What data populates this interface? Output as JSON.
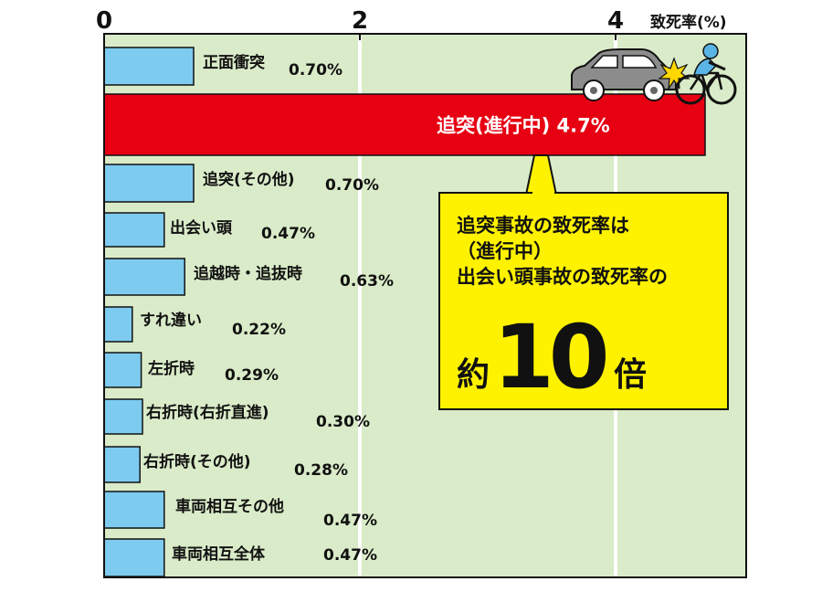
{
  "chart_data": {
    "type": "bar",
    "orientation": "horizontal",
    "x_ticks": [
      "0",
      "2",
      "4"
    ],
    "xlim": [
      0,
      4.9
    ],
    "unit_label": "致死率(%)",
    "categories": [
      "正面衝突",
      "追突(進行中)",
      "追突(その他)",
      "出会い頭",
      "追越時・追抜時",
      "すれ違い",
      "左折時",
      "右折時(右折直進)",
      "右折時(その他)",
      "車両相互その他",
      "車両相互全体"
    ],
    "values": [
      0.7,
      4.7,
      0.7,
      0.47,
      0.63,
      0.22,
      0.29,
      0.3,
      0.28,
      0.47,
      0.47
    ],
    "value_labels": [
      "0.70%",
      "4.7%",
      "0.70%",
      "0.47%",
      "0.63%",
      "0.22%",
      "0.29%",
      "0.30%",
      "0.28%",
      "0.47%",
      "0.47%"
    ],
    "highlight_index": 1,
    "grid": true,
    "colors": {
      "bar": "#7ecbf0",
      "highlight_bar": "#e60012",
      "plot_background": "#d9ebc8",
      "callout_background": "#fff200",
      "gridline": "#ffffff"
    },
    "annotation": {
      "lines": [
        "追突事故の致死率は",
        "（進行中）",
        "出会い頭事故の致死率の"
      ],
      "prefix": "約",
      "emphasis": "10",
      "suffix": "倍"
    }
  },
  "icons": [
    "car-icon",
    "bicycle-rider-icon",
    "collision-burst-icon"
  ]
}
